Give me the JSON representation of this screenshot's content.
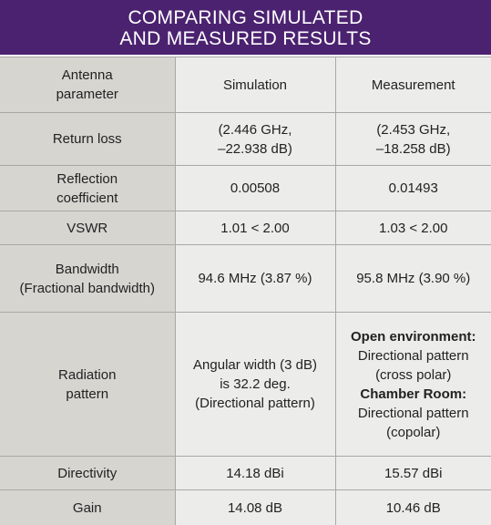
{
  "header": {
    "title_lines": [
      "COMPARING SIMULATED",
      "AND MEASURED RESULTS"
    ]
  },
  "table": {
    "columns": [
      [
        "Antenna",
        "parameter"
      ],
      [
        "Simulation"
      ],
      [
        "Measurement"
      ]
    ],
    "rows": [
      [
        [
          "Return loss"
        ],
        [
          "(2.446 GHz,",
          "–22.938 dB)"
        ],
        [
          "(2.453 GHz,",
          "–18.258 dB)"
        ]
      ],
      [
        [
          "Reflection",
          "coefficient"
        ],
        [
          "0.00508"
        ],
        [
          "0.01493"
        ]
      ],
      [
        [
          "VSWR"
        ],
        [
          "1.01 < 2.00"
        ],
        [
          "1.03 < 2.00"
        ]
      ],
      [
        [
          "Bandwidth",
          "(Fractional bandwidth)"
        ],
        [
          "94.6 MHz (3.87 %)"
        ],
        [
          "95.8 MHz (3.90 %)"
        ]
      ],
      [
        [
          "Radiation",
          "pattern"
        ],
        [
          "Angular width (3 dB)",
          "is 32.2 deg.",
          "(Directional pattern)"
        ],
        {
          "sections": [
            {
              "heading": "Open environment:",
              "lines": [
                "Directional pattern",
                "(cross polar)"
              ]
            },
            {
              "heading": "Chamber Room:",
              "lines": [
                "Directional pattern",
                "(copolar)"
              ]
            }
          ]
        }
      ],
      [
        [
          "Directivity"
        ],
        [
          "14.18 dBi"
        ],
        [
          "15.57 dBi"
        ]
      ],
      [
        [
          "Gain"
        ],
        [
          "14.08 dB"
        ],
        [
          "10.46 dB"
        ]
      ]
    ]
  }
}
